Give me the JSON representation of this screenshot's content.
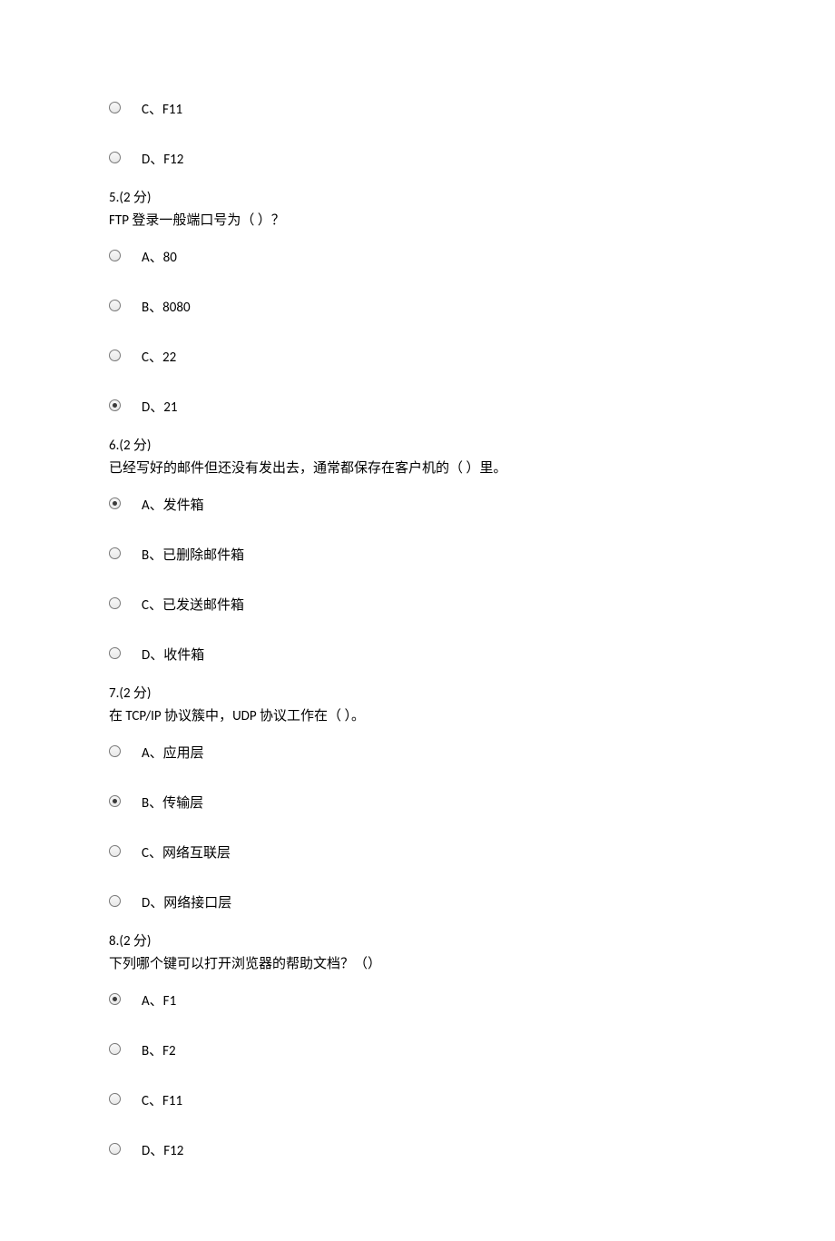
{
  "q4_tail": {
    "options": {
      "c": "C、F11",
      "d": "D、F12"
    },
    "selected": null
  },
  "q5": {
    "header": "5.(2 分)",
    "text": "FTP 登录一般端口号为（ ）？",
    "options": {
      "a": "A、80",
      "b": "B、8080",
      "c": "C、22",
      "d": "D、21"
    },
    "selected": "d"
  },
  "q6": {
    "header": "6.(2 分)",
    "text": "已经写好的邮件但还没有发出去，通常都保存在客户机的（ ）里。",
    "options": {
      "a": "A、发件箱",
      "b": "B、已删除邮件箱",
      "c": "C、已发送邮件箱",
      "d": "D、收件箱"
    },
    "selected": "a"
  },
  "q7": {
    "header": "7.(2 分)",
    "text": "在 TCP/IP 协议簇中，UDP 协议工作在（ ）。",
    "options": {
      "a": "A、应用层",
      "b": "B、传输层",
      "c": "C、网络互联层",
      "d": "D、网络接口层"
    },
    "selected": "b"
  },
  "q8": {
    "header": "8.(2 分)",
    "text": "下列哪个键可以打开浏览器的帮助文档？（）",
    "options": {
      "a": "A、F1",
      "b": "B、F2",
      "c": "C、F11",
      "d": "D、F12"
    },
    "selected": "a"
  }
}
